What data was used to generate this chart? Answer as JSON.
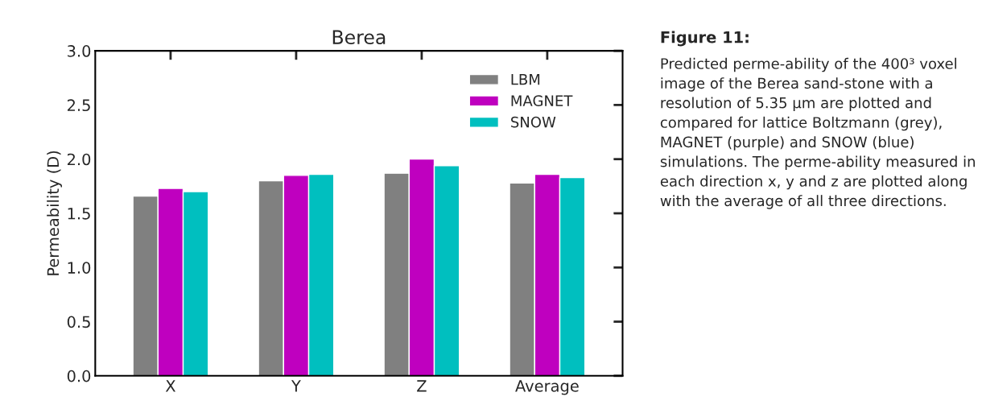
{
  "chart_data": {
    "type": "bar",
    "title": "Berea",
    "ylabel": "Permeability (D)",
    "categories": [
      "X",
      "Y",
      "Z",
      "Average"
    ],
    "series": [
      {
        "name": "LBM",
        "color": "#808080",
        "values": [
          1.66,
          1.8,
          1.87,
          1.78
        ]
      },
      {
        "name": "MAGNET",
        "color": "#bf00bf",
        "values": [
          1.73,
          1.85,
          2.0,
          1.86
        ]
      },
      {
        "name": "SNOW",
        "color": "#00bfbf",
        "values": [
          1.7,
          1.86,
          1.94,
          1.83
        ]
      }
    ],
    "ylim": [
      0,
      3.0
    ],
    "yticks": [
      {
        "value": 0,
        "label": "0.0"
      },
      {
        "value": 0.5,
        "label": "0.5"
      },
      {
        "value": 1.0,
        "label": "1.0"
      },
      {
        "value": 1.5,
        "label": "1.5"
      },
      {
        "value": 2.0,
        "label": "2.0"
      },
      {
        "value": 2.5,
        "label": "2.5"
      },
      {
        "value": 3.0,
        "label": "3.0"
      }
    ],
    "legend": "top right",
    "grid": false,
    "annotations": [
      "Figure 11:",
      "Predicted perme-ability of the 400³ voxel image of the Berea sand-stone with a resolution of 5.35 μm are plotted and compared for lattice Boltzmann (grey), MAGNET (purple) and SNOW (blue) simulations. The perme-ability measured in each direction x, y and z are plotted along with the average of all three directions."
    ]
  }
}
